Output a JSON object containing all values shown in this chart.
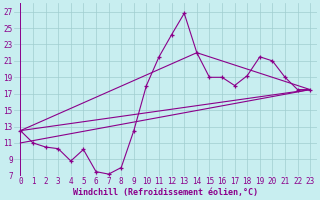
{
  "xlabel": "Windchill (Refroidissement éolien,°C)",
  "background_color": "#c8eef0",
  "grid_color": "#a0cdd0",
  "line_color": "#8b008b",
  "xlim": [
    -0.5,
    23.5
  ],
  "ylim": [
    7,
    28
  ],
  "yticks": [
    7,
    9,
    11,
    13,
    15,
    17,
    19,
    21,
    23,
    25,
    27
  ],
  "xticks": [
    0,
    1,
    2,
    3,
    4,
    5,
    6,
    7,
    8,
    9,
    10,
    11,
    12,
    13,
    14,
    15,
    16,
    17,
    18,
    19,
    20,
    21,
    22,
    23
  ],
  "main_x": [
    0,
    1,
    2,
    3,
    4,
    5,
    6,
    7,
    8,
    9,
    10,
    11,
    12,
    13,
    14,
    15,
    16,
    17,
    18,
    19,
    20,
    21,
    22,
    23
  ],
  "main_y": [
    12.5,
    11.0,
    10.5,
    10.3,
    8.8,
    10.2,
    7.5,
    7.2,
    8.0,
    12.5,
    18.0,
    21.5,
    24.2,
    26.8,
    22.0,
    19.0,
    19.0,
    18.0,
    19.2,
    21.5,
    21.0,
    19.0,
    17.5,
    17.5
  ],
  "line1_x": [
    0,
    23
  ],
  "line1_y": [
    12.5,
    17.5
  ],
  "line2_x": [
    0,
    14,
    23
  ],
  "line2_y": [
    12.5,
    22.0,
    17.5
  ],
  "line3_x": [
    0,
    23
  ],
  "line3_y": [
    11.0,
    17.5
  ],
  "tick_fontsize": 5.5,
  "xlabel_fontsize": 6.0
}
